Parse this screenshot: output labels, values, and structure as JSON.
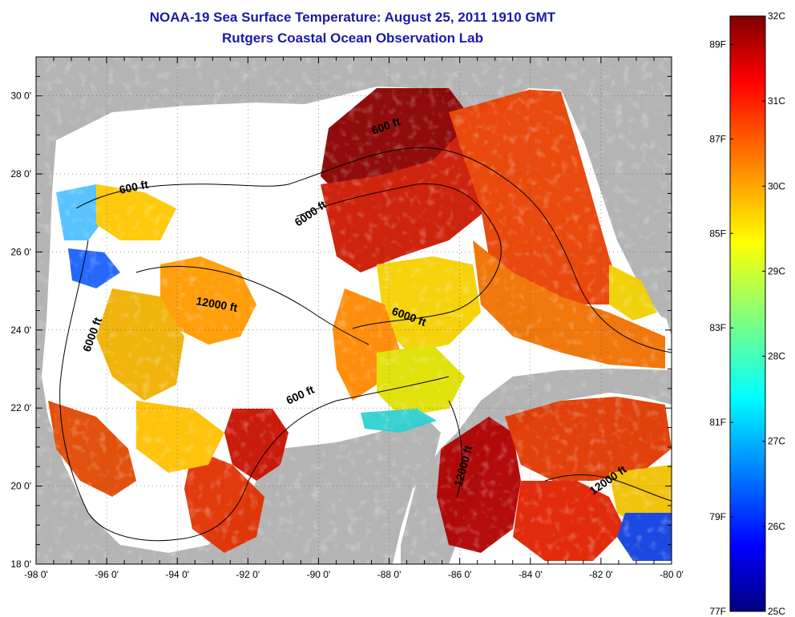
{
  "title": "NOAA-19 Sea Surface Temperature:  August 25, 2011 1910 GMT",
  "subtitle": "Rutgers Coastal Ocean Observation Lab",
  "map": {
    "lon_range": [
      -98,
      -80
    ],
    "lat_range": [
      18,
      31
    ],
    "lon_ticks": [
      "-98 0'",
      "-96 0'",
      "-94 0'",
      "-92 0'",
      "-90 0'",
      "-88 0'",
      "-86 0'",
      "-84 0'",
      "-82 0'",
      "-80 0'"
    ],
    "lat_ticks": [
      "18 0'",
      "20 0'",
      "22 0'",
      "24 0'",
      "26 0'",
      "28 0'",
      "30 0'"
    ],
    "grid": "dotted",
    "land_color": "#b4b4b4",
    "missing_color": "#ffffff",
    "contour_labels": [
      {
        "text": "600 ft",
        "id": "c600a"
      },
      {
        "text": "600 ft",
        "id": "c600b"
      },
      {
        "text": "600 ft",
        "id": "c600c"
      },
      {
        "text": "6000 ft",
        "id": "c6000a"
      },
      {
        "text": "6000 ft",
        "id": "c6000b"
      },
      {
        "text": "6000 ft",
        "id": "c6000c"
      },
      {
        "text": "12000 ft",
        "id": "c12000a"
      },
      {
        "text": "12000 ft",
        "id": "c12000b"
      },
      {
        "text": "12000 ft",
        "id": "c12000c"
      }
    ]
  },
  "colorbar": {
    "min_c": 25,
    "max_c": 32,
    "colormap": "jet",
    "celsius_labels": [
      "32C",
      "31C",
      "30C",
      "29C",
      "28C",
      "27C",
      "26C",
      "25C"
    ],
    "fahrenheit_labels": [
      "89F",
      "87F",
      "85F",
      "83F",
      "81F",
      "79F",
      "77F"
    ]
  }
}
